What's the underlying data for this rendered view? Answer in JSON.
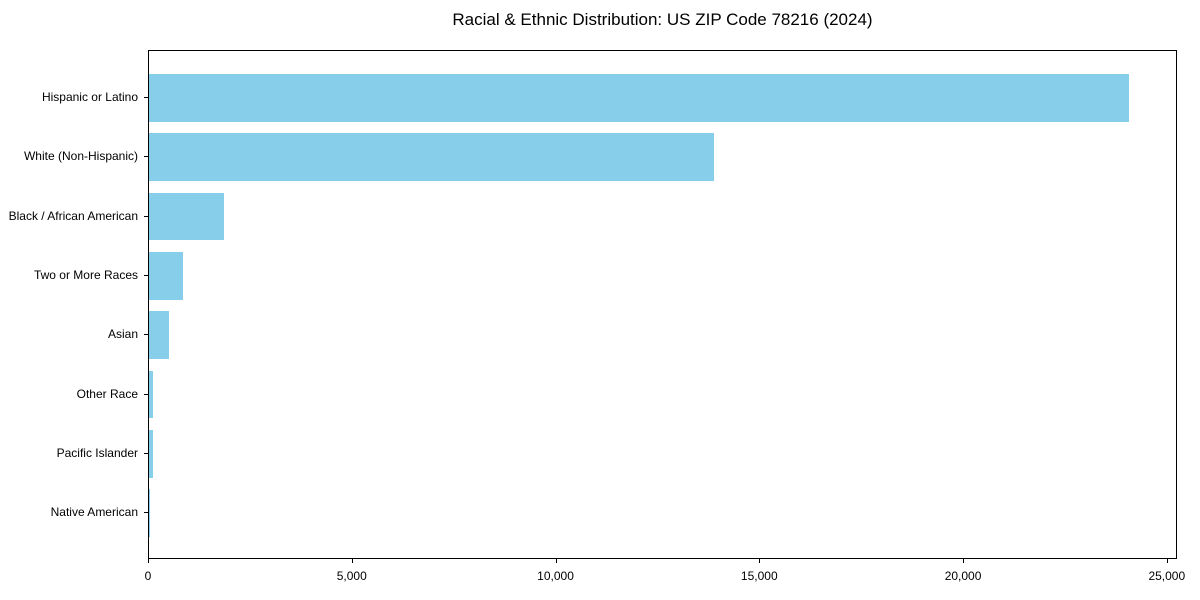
{
  "chart_data": {
    "type": "bar",
    "orientation": "horizontal",
    "title": "Racial & Ethnic Distribution: US ZIP Code 78216 (2024)",
    "categories": [
      "Hispanic or Latino",
      "White (Non-Hispanic)",
      "Black / African American",
      "Two or More Races",
      "Asian",
      "Other Race",
      "Pacific Islander",
      "Native American"
    ],
    "values": [
      24050,
      13860,
      1830,
      835,
      500,
      105,
      95,
      25
    ],
    "xlabel": "",
    "ylabel": "",
    "xlim": [
      0,
      25250
    ],
    "x_ticks": [
      0,
      5000,
      10000,
      15000,
      20000,
      25000
    ],
    "x_tick_labels": [
      "0",
      "5,000",
      "10,000",
      "15,000",
      "20,000",
      "25,000"
    ],
    "bar_color": "#87CEEB",
    "background_color": "#ffffff",
    "spine_color": "#000000",
    "grid": false,
    "legend": null,
    "sorted": "descending"
  }
}
